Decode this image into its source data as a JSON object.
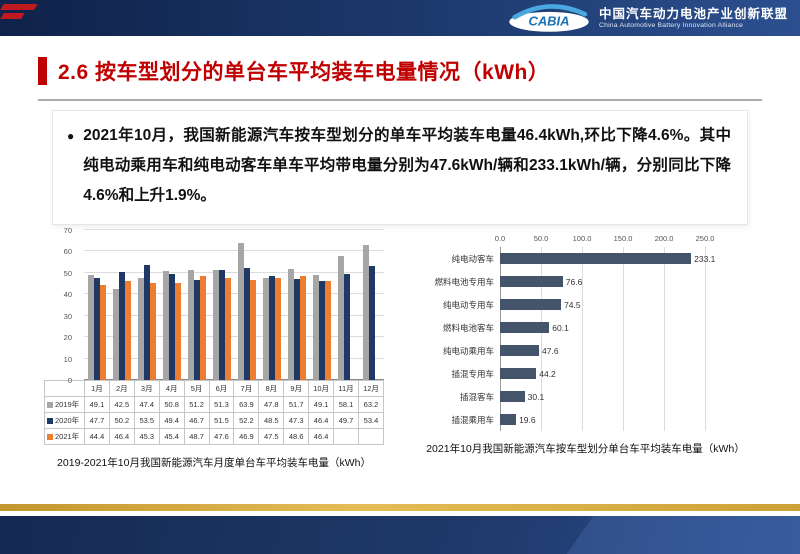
{
  "header": {
    "logo_text": "CABIA",
    "org_name_cn": "中国汽车动力电池产业创新联盟",
    "org_name_en": "China Automotive Battery Innovation Alliance"
  },
  "title": "2.6 按车型划分的单台车平均装车电量情况（kWh）",
  "summary": {
    "bullet": "●",
    "text": "2021年10月，我国新能源汽车按车型划分的单车平均装车电量46.4kWh,环比下降4.6%。其中纯电动乘用车和纯电动客车单车平均带电量分别为47.6kWh/辆和233.1kWh/辆，分别同比下降4.6%和上升1.9%。"
  },
  "colors": {
    "accent_red": "#C00000",
    "header_navy": "#1F3864",
    "gold_strip": "#D2A63C"
  },
  "chart_data": [
    {
      "type": "bar",
      "title": "2019-2021年10月我国新能源汽车月度单台车平均装车电量（kWh）",
      "categories": [
        "1月",
        "2月",
        "3月",
        "4月",
        "5月",
        "6月",
        "7月",
        "8月",
        "9月",
        "10月",
        "11月",
        "12月"
      ],
      "series": [
        {
          "name": "2019年",
          "color": "#A6A6A6",
          "values": [
            49.1,
            42.5,
            47.4,
            50.8,
            51.2,
            51.3,
            63.9,
            47.8,
            51.7,
            49.1,
            58.1,
            63.2
          ]
        },
        {
          "name": "2020年",
          "color": "#1F3864",
          "values": [
            47.7,
            50.2,
            53.5,
            49.4,
            46.7,
            51.5,
            52.2,
            48.5,
            47.3,
            46.4,
            49.7,
            53.4
          ]
        },
        {
          "name": "2021年",
          "color": "#ED7D31",
          "values": [
            44.4,
            46.4,
            45.3,
            45.4,
            48.7,
            47.6,
            46.9,
            47.5,
            48.6,
            46.4,
            null,
            null
          ]
        }
      ],
      "xlabel": "",
      "ylabel": "",
      "ylim": [
        0,
        70
      ],
      "ytick_step": 10,
      "grid": true,
      "legend_position": "data-table-left"
    },
    {
      "type": "bar",
      "orientation": "horizontal",
      "title": "2021年10月我国新能源汽车按车型划分单台车平均装车电量（kWh）",
      "categories": [
        "纯电动客车",
        "燃料电池专用车",
        "纯电动专用车",
        "燃料电池客车",
        "纯电动乘用车",
        "插混专用车",
        "插混客车",
        "插混乘用车"
      ],
      "values": [
        233.1,
        76.6,
        74.5,
        60.1,
        47.6,
        44.2,
        30.1,
        19.6
      ],
      "xlabel": "",
      "ylabel": "",
      "xlim": [
        0,
        250
      ],
      "xticks": [
        "0.0",
        "50.0",
        "100.0",
        "150.0",
        "200.0",
        "250.0"
      ],
      "bar_color": "#44546A",
      "grid": true,
      "legend_position": "none"
    }
  ]
}
